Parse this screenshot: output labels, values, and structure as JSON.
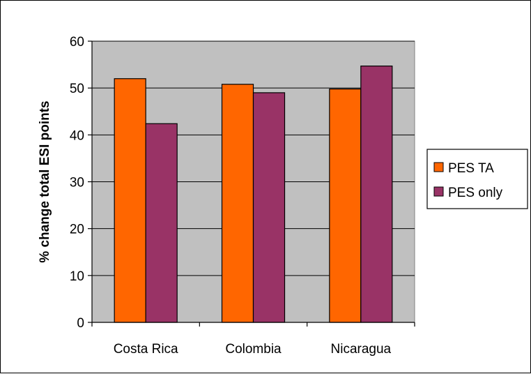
{
  "chart_data": {
    "type": "bar",
    "title": "",
    "xlabel": "",
    "ylabel": "% change total ESI points",
    "categories": [
      "Costa Rica",
      "Colombia",
      "Nicaragua"
    ],
    "series": [
      {
        "name": "PES TA",
        "values": [
          52,
          50.8,
          49.8
        ],
        "color": "#FF6600"
      },
      {
        "name": "PES only",
        "values": [
          42.4,
          49,
          54.7
        ],
        "color": "#993366"
      }
    ],
    "ylim": [
      0,
      60
    ],
    "yticks": [
      0,
      10,
      20,
      30,
      40,
      50,
      60
    ],
    "grid": true,
    "plot_background": "#C0C0C0",
    "legend": "right"
  }
}
